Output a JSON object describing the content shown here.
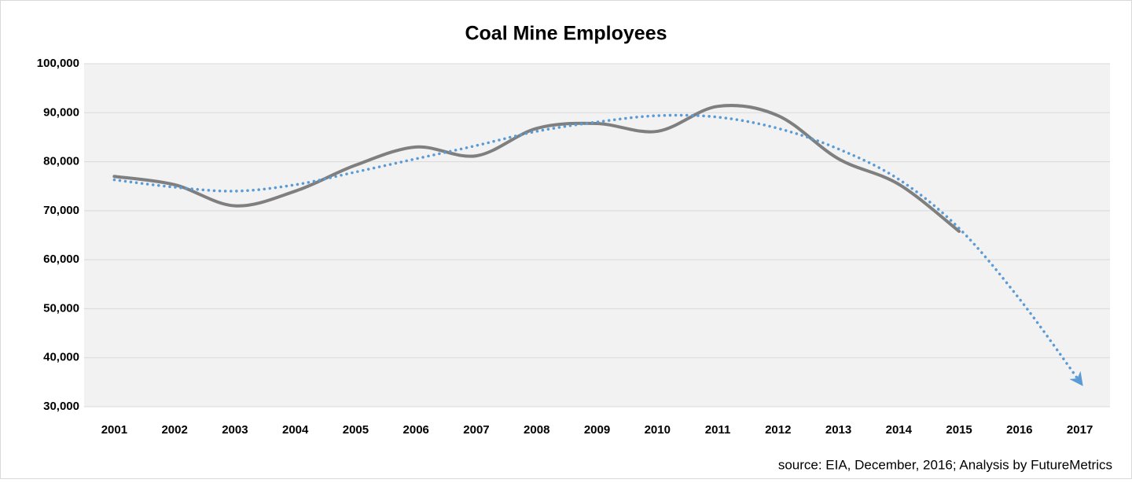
{
  "chart_data": {
    "type": "line",
    "title": "Coal Mine Employees",
    "annotation": "source: EIA, December, 2016; Analysis by FutureMetrics",
    "categories": [
      "2001",
      "2002",
      "2003",
      "2004",
      "2005",
      "2006",
      "2007",
      "2008",
      "2009",
      "2010",
      "2011",
      "2012",
      "2013",
      "2014",
      "2015",
      "2016",
      "2017"
    ],
    "series": [
      {
        "color": "#7f7f7f",
        "style": "solid",
        "values": [
          77000,
          75300,
          71000,
          74000,
          79300,
          83000,
          81200,
          86800,
          87800,
          86200,
          91300,
          89400,
          80600,
          75400,
          65800,
          null,
          null
        ]
      },
      {
        "color": "#5b9bd5",
        "style": "dotted",
        "values": [
          76300,
          74800,
          74000,
          75300,
          77900,
          80600,
          83300,
          86200,
          88100,
          89400,
          89100,
          86800,
          82600,
          76400,
          66400,
          52000,
          35100
        ]
      }
    ],
    "ylim": [
      30000,
      100000
    ],
    "yticks": [
      {
        "value": 30000,
        "label": "30,000"
      },
      {
        "value": 40000,
        "label": "40,000"
      },
      {
        "value": 50000,
        "label": "50,000"
      },
      {
        "value": 60000,
        "label": "60,000"
      },
      {
        "value": 70000,
        "label": "70,000"
      },
      {
        "value": 80000,
        "label": "80,000"
      },
      {
        "value": 90000,
        "label": "90,000"
      },
      {
        "value": 100000,
        "label": "100,000"
      }
    ],
    "grid": true
  }
}
